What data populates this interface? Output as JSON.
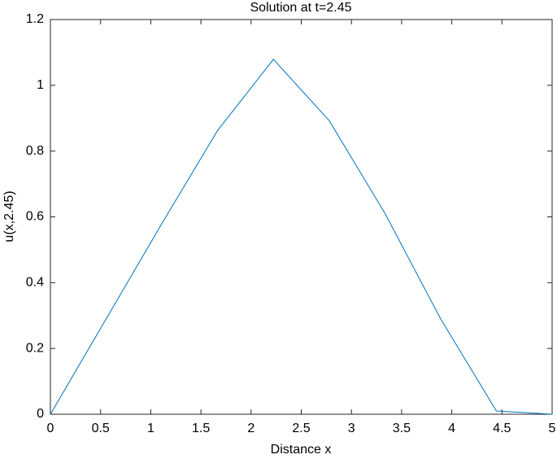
{
  "chart_data": {
    "type": "line",
    "title": "Solution at t=2.45",
    "x_label": "Distance x",
    "y_label": "u(x,2.45)",
    "x": [
      0,
      0.5556,
      1.1111,
      1.6667,
      2.2222,
      2.7778,
      3.3333,
      3.8889,
      4.4444,
      5
    ],
    "series": [
      {
        "name": "u",
        "color": "#0072bd",
        "values": [
          0,
          0.29,
          0.58,
          0.863,
          1.079,
          0.893,
          0.611,
          0.29,
          0.01,
          0
        ]
      }
    ],
    "xlim": [
      0,
      5
    ],
    "xticks": [
      0,
      0.5,
      1,
      1.5,
      2,
      2.5,
      3,
      3.5,
      4,
      4.5,
      5
    ],
    "ylim": [
      0,
      1.2
    ],
    "yticks": [
      0,
      0.2,
      0.4,
      0.6,
      0.8,
      1,
      1.2
    ],
    "grid": false
  }
}
